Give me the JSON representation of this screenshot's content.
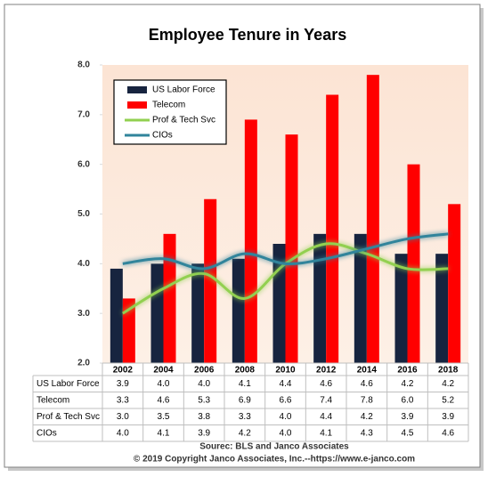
{
  "chart_data": {
    "type": "bar-line",
    "title": "Employee Tenure in Years",
    "categories": [
      "2002",
      "2004",
      "2006",
      "2008",
      "2010",
      "2012",
      "2014",
      "2016",
      "2018"
    ],
    "series": [
      {
        "name": "US Labor Force",
        "kind": "bar",
        "color": "#17243f",
        "values": [
          3.9,
          4.0,
          4.0,
          4.1,
          4.4,
          4.6,
          4.6,
          4.2,
          4.2
        ]
      },
      {
        "name": "Telecom",
        "kind": "bar",
        "color": "#ff0000",
        "values": [
          3.3,
          4.6,
          5.3,
          6.9,
          6.6,
          7.4,
          7.8,
          6.0,
          5.2
        ]
      },
      {
        "name": "Prof & Tech Svc",
        "kind": "line",
        "color": "#92d050",
        "values": [
          3.0,
          3.5,
          3.8,
          3.3,
          4.0,
          4.4,
          4.2,
          3.9,
          3.9
        ]
      },
      {
        "name": "CIOs",
        "kind": "line",
        "color": "#31849b",
        "values": [
          4.0,
          4.1,
          3.9,
          4.2,
          4.0,
          4.1,
          4.3,
          4.5,
          4.6
        ]
      }
    ],
    "ylim": [
      2,
      8
    ],
    "yticks": [
      {
        "value": 2,
        "label": "2.0"
      },
      {
        "value": 3,
        "label": "3.0"
      },
      {
        "value": 4,
        "label": "4.0"
      },
      {
        "value": 5,
        "label": "5.0"
      },
      {
        "value": 6,
        "label": "6.0"
      },
      {
        "value": 7,
        "label": "7.0"
      },
      {
        "value": 8,
        "label": "8.0"
      }
    ],
    "legend": "upper left",
    "source": [
      "Sourec: BLS and Janco Associates",
      "© 2019 Copyright Janco Associates, Inc.--https://www.e-janco.com"
    ]
  }
}
